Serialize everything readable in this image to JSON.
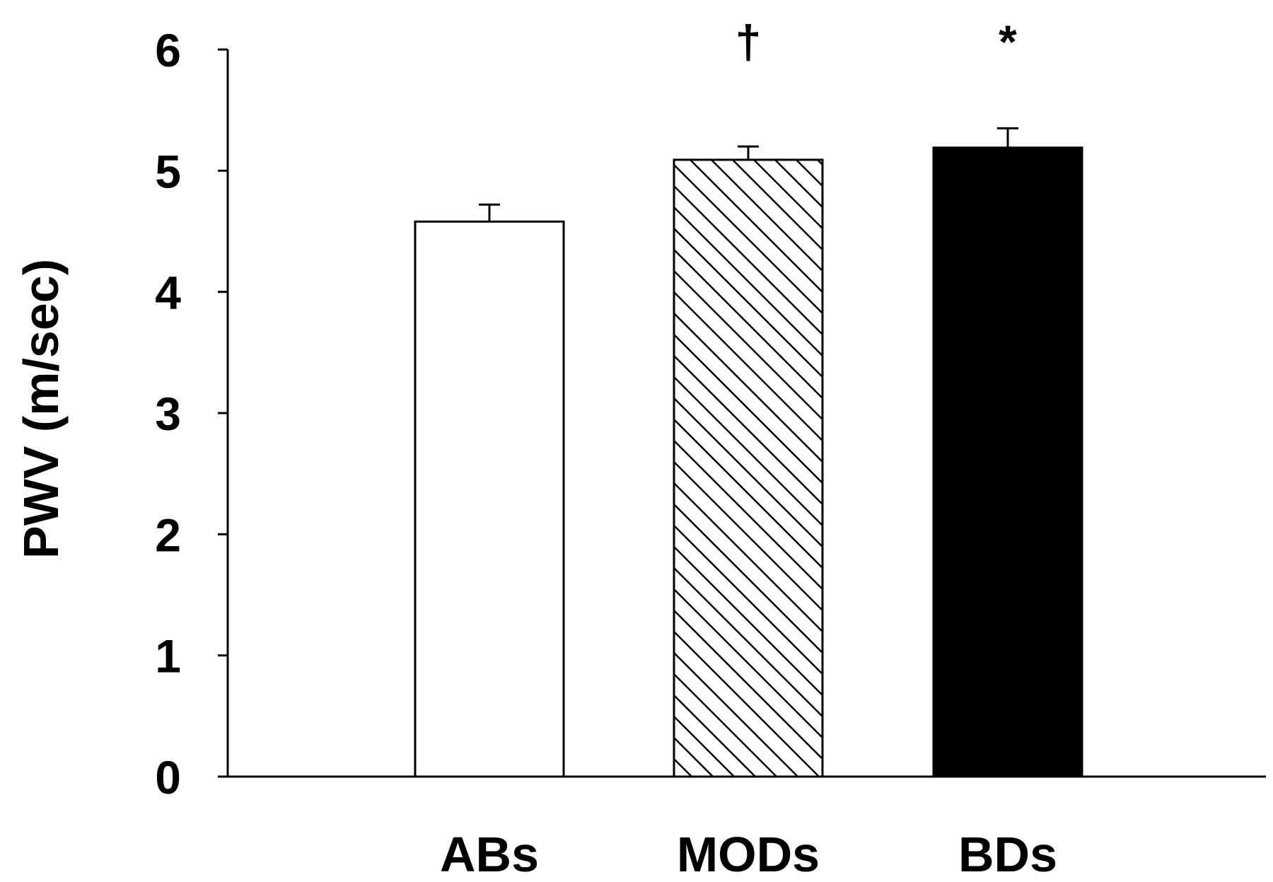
{
  "chart_data": {
    "type": "bar",
    "title": "",
    "xlabel": "",
    "ylabel": "PWV (m/sec)",
    "ylim": [
      0,
      6
    ],
    "yticks": [
      0,
      1,
      2,
      3,
      4,
      5,
      6
    ],
    "grid": false,
    "legend": "none",
    "categories": [
      "ABs",
      "MODs",
      "BDs"
    ],
    "values": [
      4.58,
      5.09,
      5.19
    ],
    "error": [
      0.14,
      0.11,
      0.16
    ],
    "annotations": [
      "",
      "†",
      "*"
    ],
    "fills": [
      "white",
      "hatched",
      "black"
    ],
    "colors": {
      "outline": "#000000",
      "background": "#ffffff"
    }
  }
}
